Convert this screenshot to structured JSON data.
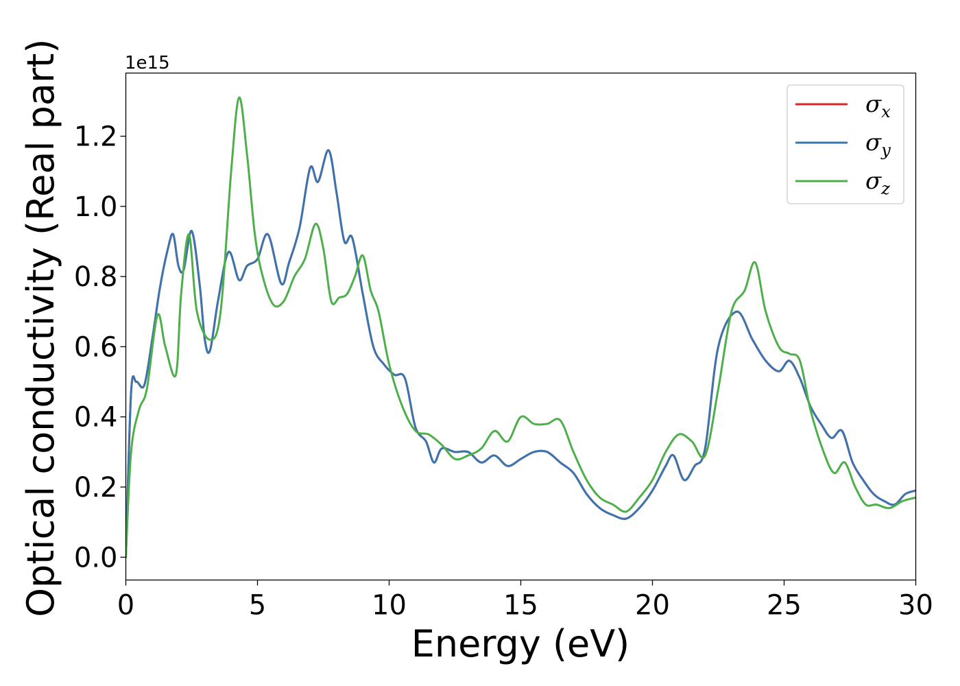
{
  "chart_data": {
    "type": "line",
    "xlabel": "Energy (eV)",
    "ylabel": "Optical conductivity (Real part)",
    "y_offset_label": "1e15",
    "xlim": [
      0,
      30
    ],
    "ylim": [
      -0.065,
      1.38
    ],
    "grid": false,
    "legend_position": "top-right",
    "x_ticks": [
      0,
      5,
      10,
      15,
      20,
      25,
      30
    ],
    "x_tick_labels": [
      "0",
      "5",
      "10",
      "15",
      "20",
      "25",
      "30"
    ],
    "y_ticks": [
      0.0,
      0.2,
      0.4,
      0.6,
      0.8,
      1.0,
      1.2
    ],
    "y_tick_labels": [
      "0.0",
      "0.2",
      "0.4",
      "0.6",
      "0.8",
      "1.0",
      "1.2"
    ],
    "series": [
      {
        "name": "σx",
        "symbol": "σ",
        "subscript": "x",
        "color": "#d62728",
        "x": [
          0,
          0.2,
          0.4,
          0.7,
          1.0,
          1.3,
          1.6,
          1.8,
          2.0,
          2.2,
          2.5,
          2.8,
          3.0,
          3.2,
          3.5,
          3.9,
          4.3,
          4.6,
          5.0,
          5.4,
          5.9,
          6.2,
          6.6,
          7.0,
          7.3,
          7.7,
          8.0,
          8.3,
          8.6,
          9.0,
          9.4,
          9.8,
          10.2,
          10.6,
          11.0,
          11.4,
          11.7,
          12.0,
          12.5,
          13.0,
          13.5,
          14.0,
          14.5,
          15.0,
          15.5,
          16.0,
          16.5,
          17.0,
          17.5,
          18.0,
          18.5,
          19.0,
          19.5,
          20.0,
          20.5,
          20.8,
          21.2,
          21.6,
          22.0,
          22.5,
          23.2,
          23.8,
          24.3,
          24.8,
          25.2,
          25.6,
          26.0,
          26.4,
          26.8,
          27.2,
          27.6,
          28.0,
          28.4,
          28.8,
          29.2,
          29.6,
          30.0
        ],
        "y": [
          0.0,
          0.47,
          0.5,
          0.49,
          0.62,
          0.77,
          0.88,
          0.92,
          0.83,
          0.82,
          0.93,
          0.78,
          0.62,
          0.59,
          0.73,
          0.87,
          0.79,
          0.83,
          0.85,
          0.92,
          0.78,
          0.84,
          0.94,
          1.11,
          1.07,
          1.16,
          1.04,
          0.9,
          0.91,
          0.75,
          0.6,
          0.55,
          0.52,
          0.51,
          0.37,
          0.33,
          0.27,
          0.31,
          0.3,
          0.3,
          0.27,
          0.29,
          0.26,
          0.28,
          0.3,
          0.3,
          0.27,
          0.24,
          0.18,
          0.14,
          0.12,
          0.11,
          0.14,
          0.19,
          0.26,
          0.29,
          0.22,
          0.26,
          0.31,
          0.6,
          0.7,
          0.62,
          0.56,
          0.53,
          0.56,
          0.51,
          0.43,
          0.38,
          0.34,
          0.36,
          0.27,
          0.22,
          0.18,
          0.16,
          0.15,
          0.18,
          0.19
        ]
      },
      {
        "name": "σy",
        "symbol": "σ",
        "subscript": "y",
        "color": "#3b75af",
        "x": [
          0,
          0.2,
          0.4,
          0.7,
          1.0,
          1.3,
          1.6,
          1.8,
          2.0,
          2.2,
          2.5,
          2.8,
          3.0,
          3.2,
          3.5,
          3.9,
          4.3,
          4.6,
          5.0,
          5.4,
          5.9,
          6.2,
          6.6,
          7.0,
          7.3,
          7.7,
          8.0,
          8.3,
          8.6,
          9.0,
          9.4,
          9.8,
          10.2,
          10.6,
          11.0,
          11.4,
          11.7,
          12.0,
          12.5,
          13.0,
          13.5,
          14.0,
          14.5,
          15.0,
          15.5,
          16.0,
          16.5,
          17.0,
          17.5,
          18.0,
          18.5,
          19.0,
          19.5,
          20.0,
          20.5,
          20.8,
          21.2,
          21.6,
          22.0,
          22.5,
          23.2,
          23.8,
          24.3,
          24.8,
          25.2,
          25.6,
          26.0,
          26.4,
          26.8,
          27.2,
          27.6,
          28.0,
          28.4,
          28.8,
          29.2,
          29.6,
          30.0
        ],
        "y": [
          0.0,
          0.47,
          0.5,
          0.49,
          0.62,
          0.77,
          0.88,
          0.92,
          0.83,
          0.82,
          0.93,
          0.78,
          0.62,
          0.59,
          0.73,
          0.87,
          0.79,
          0.83,
          0.85,
          0.92,
          0.78,
          0.84,
          0.94,
          1.11,
          1.07,
          1.16,
          1.04,
          0.9,
          0.91,
          0.75,
          0.6,
          0.55,
          0.52,
          0.51,
          0.37,
          0.33,
          0.27,
          0.31,
          0.3,
          0.3,
          0.27,
          0.29,
          0.26,
          0.28,
          0.3,
          0.3,
          0.27,
          0.24,
          0.18,
          0.14,
          0.12,
          0.11,
          0.14,
          0.19,
          0.26,
          0.29,
          0.22,
          0.26,
          0.31,
          0.6,
          0.7,
          0.62,
          0.56,
          0.53,
          0.56,
          0.51,
          0.43,
          0.38,
          0.34,
          0.36,
          0.27,
          0.22,
          0.18,
          0.16,
          0.15,
          0.18,
          0.19
        ]
      },
      {
        "name": "σz",
        "symbol": "σ",
        "subscript": "z",
        "color": "#4daf4a",
        "x": [
          0,
          0.2,
          0.5,
          0.8,
          1.2,
          1.5,
          1.9,
          2.1,
          2.4,
          2.7,
          3.2,
          3.6,
          4.0,
          4.3,
          4.6,
          4.9,
          5.2,
          5.6,
          6.0,
          6.4,
          6.8,
          7.2,
          7.5,
          7.8,
          8.1,
          8.4,
          8.7,
          9.0,
          9.3,
          9.6,
          10.0,
          10.5,
          11.0,
          11.5,
          12.0,
          12.5,
          13.0,
          13.5,
          14.0,
          14.5,
          15.0,
          15.5,
          16.0,
          16.5,
          17.0,
          17.5,
          18.0,
          18.5,
          19.0,
          19.5,
          20.0,
          20.5,
          21.0,
          21.5,
          22.0,
          22.5,
          23.0,
          23.5,
          23.9,
          24.3,
          24.8,
          25.2,
          25.6,
          26.0,
          26.5,
          26.9,
          27.3,
          27.7,
          28.1,
          28.5,
          29.0,
          29.5,
          30.0
        ],
        "y": [
          0.0,
          0.3,
          0.42,
          0.48,
          0.69,
          0.6,
          0.52,
          0.75,
          0.92,
          0.7,
          0.62,
          0.7,
          1.1,
          1.31,
          1.15,
          0.92,
          0.8,
          0.72,
          0.73,
          0.8,
          0.85,
          0.95,
          0.88,
          0.73,
          0.74,
          0.75,
          0.8,
          0.86,
          0.76,
          0.7,
          0.55,
          0.43,
          0.36,
          0.35,
          0.32,
          0.28,
          0.29,
          0.31,
          0.36,
          0.33,
          0.4,
          0.38,
          0.38,
          0.39,
          0.3,
          0.22,
          0.17,
          0.15,
          0.13,
          0.17,
          0.22,
          0.3,
          0.35,
          0.33,
          0.29,
          0.48,
          0.7,
          0.76,
          0.84,
          0.7,
          0.6,
          0.58,
          0.56,
          0.42,
          0.3,
          0.24,
          0.27,
          0.2,
          0.15,
          0.15,
          0.14,
          0.16,
          0.17
        ]
      }
    ]
  }
}
